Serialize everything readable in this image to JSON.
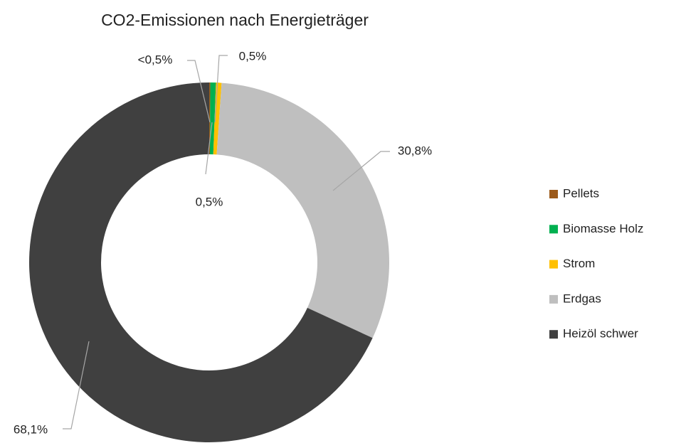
{
  "chart_data": {
    "type": "donut",
    "title": "CO2-Emissionen nach Energieträger",
    "categories": [
      "Pellets",
      "Biomasse Holz",
      "Strom",
      "Erdgas",
      "Heizöl schwer"
    ],
    "values": [
      0.1,
      0.5,
      0.5,
      30.8,
      68.1
    ],
    "value_labels": [
      "<0,5%",
      "0,5%",
      "0,5%",
      "30,8%",
      "68,1%"
    ],
    "colors": [
      "#9c5a1a",
      "#00b050",
      "#ffc000",
      "#bfbfbf",
      "#404040"
    ],
    "legend": "right"
  }
}
